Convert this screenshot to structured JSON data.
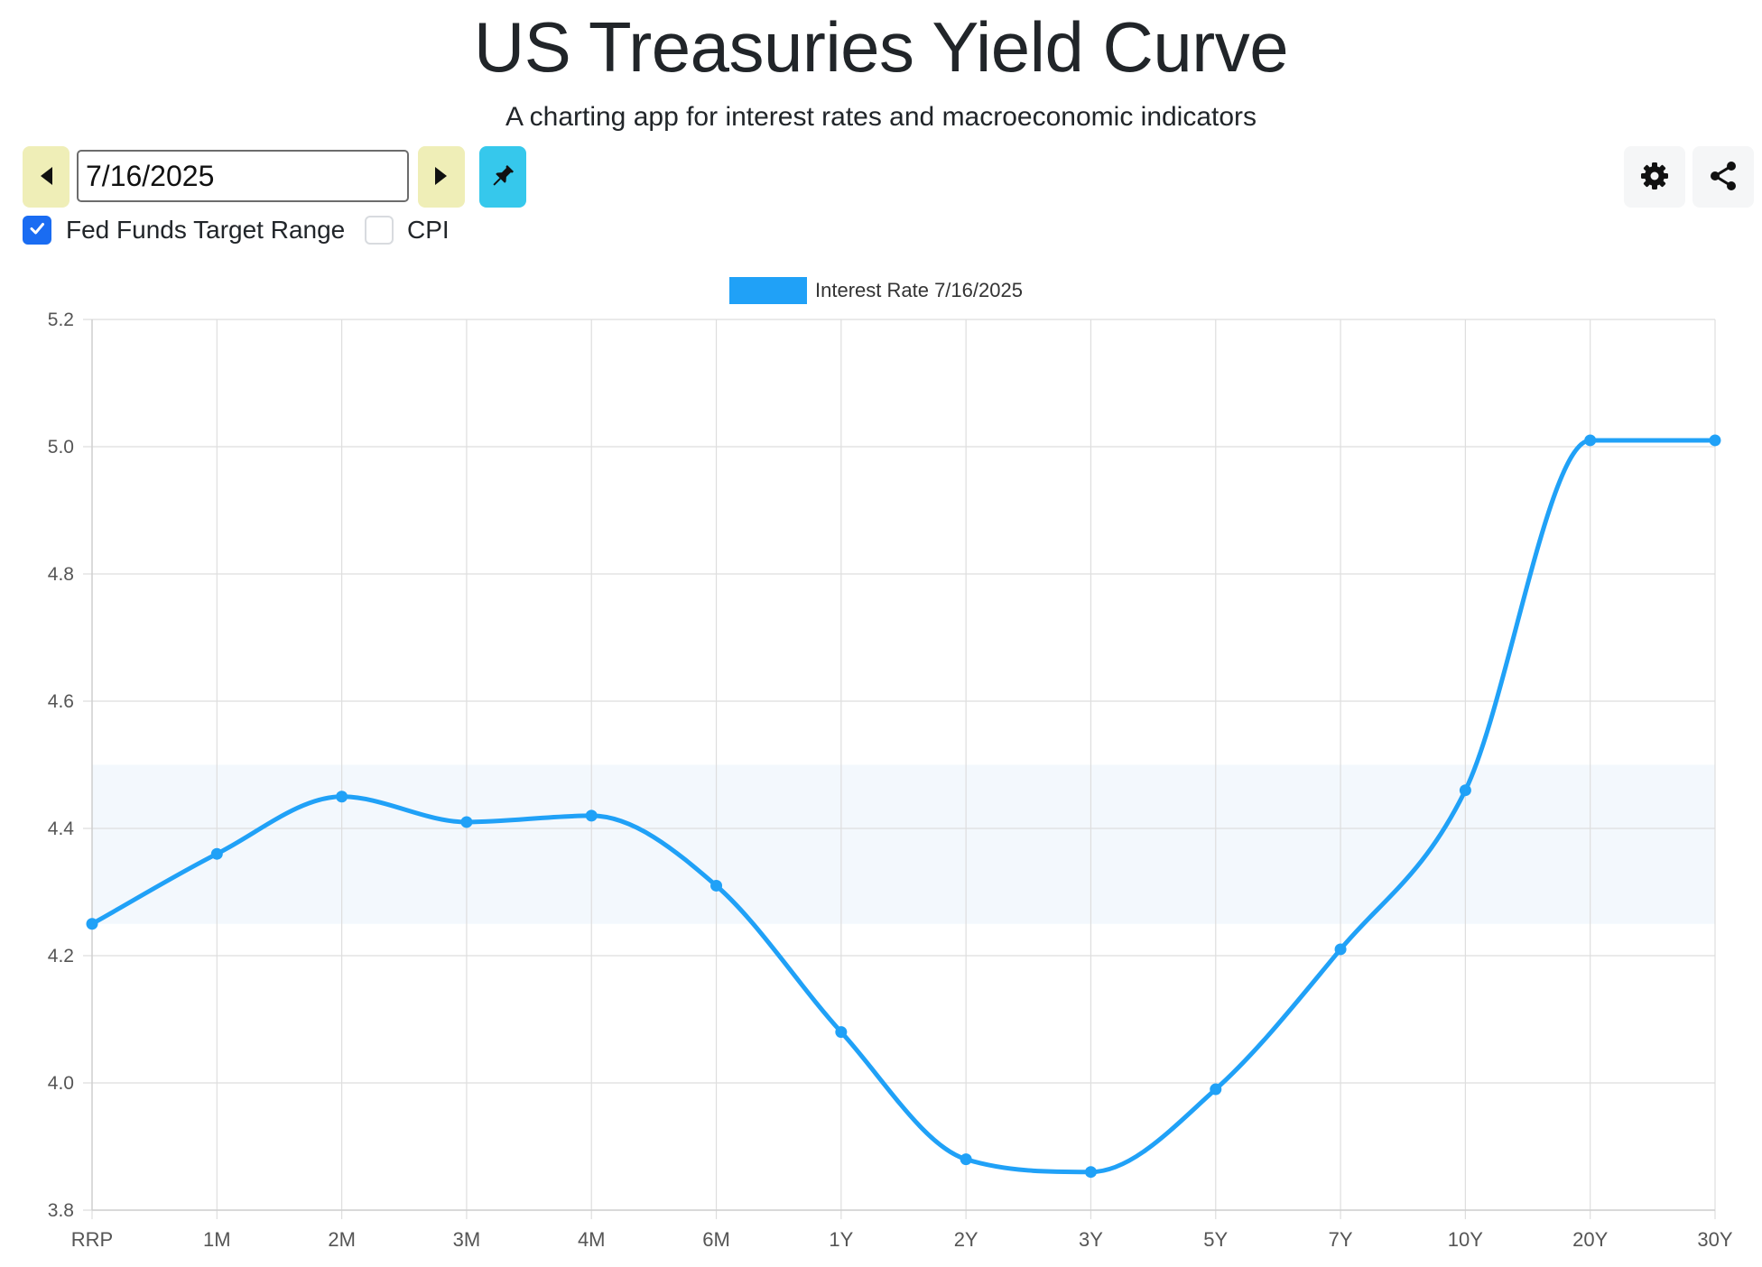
{
  "header": {
    "title": "US Treasuries Yield Curve",
    "subtitle": "A charting app for interest rates and macroeconomic indicators"
  },
  "controls": {
    "date_value": "7/16/2025",
    "fed_funds_label": "Fed Funds Target Range",
    "fed_funds_checked": true,
    "cpi_label": "CPI",
    "cpi_checked": false
  },
  "icons": {
    "prev": "caret-left-icon",
    "next": "caret-right-icon",
    "pin": "pin-icon",
    "settings": "gear-icon",
    "share": "share-icon"
  },
  "colors": {
    "series": "#20a1f7",
    "fed_band": "#f3f8fd",
    "nav_button": "#efeeb7",
    "pin_button": "#36c8ec",
    "checkbox": "#1a6cf2"
  },
  "chart_data": {
    "type": "line",
    "categories": [
      "RRP",
      "1M",
      "2M",
      "3M",
      "4M",
      "6M",
      "1Y",
      "2Y",
      "3Y",
      "5Y",
      "7Y",
      "10Y",
      "20Y",
      "30Y"
    ],
    "series": [
      {
        "name": "Interest Rate 7/16/2025",
        "values": [
          4.25,
          4.36,
          4.45,
          4.41,
          4.42,
          4.31,
          4.08,
          3.88,
          3.86,
          3.99,
          4.21,
          4.46,
          5.01,
          5.01
        ]
      }
    ],
    "fed_funds_target_range": [
      4.25,
      4.5
    ],
    "ylim": [
      3.8,
      5.2
    ],
    "yticks": [
      "3.8",
      "4.0",
      "4.2",
      "4.4",
      "4.6",
      "4.8",
      "5.0",
      "5.2"
    ],
    "grid": true,
    "legend_position": "top-center",
    "smooth": true
  }
}
